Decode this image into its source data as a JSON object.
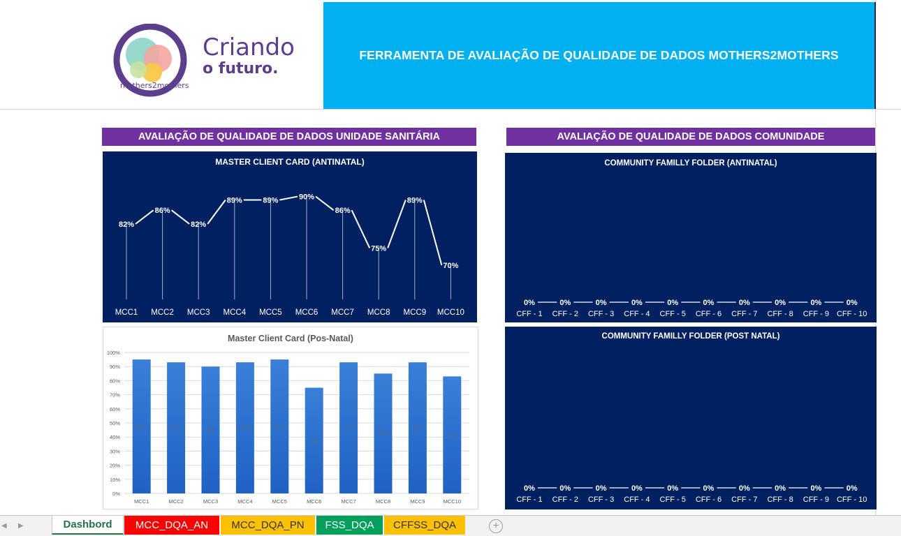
{
  "header": {
    "logo": {
      "line1": "Criando",
      "line2": "o futuro.",
      "arc_text": "mothers2mothers"
    },
    "banner_title": "FERRAMENTA DE AVALIAÇÃO DE QUALIDADE DE DADOS MOTHERS2MOTHERS"
  },
  "sections": {
    "left_title": "AVALIAÇÃO  DE QUALIDADE DE DADOS UNIDADE SANITÁRIA",
    "right_title": "AVALIAÇÃO  DE QUALIDADE DE DADOS COMUNIDADE"
  },
  "colors": {
    "banner": "#00b0f0",
    "section_header": "#7030a0",
    "panel_navy": "#002060",
    "bar_blue": "#2e75d2",
    "tab_red": "#ff0000",
    "tab_yellow": "#ffc000",
    "tab_green": "#00a05a"
  },
  "chart_data": [
    {
      "type": "line",
      "title": "MASTER CLIENT CARD (ANTINATAL)",
      "categories": [
        "MCC1",
        "MCC2",
        "MCC3",
        "MCC4",
        "MCC5",
        "MCC6",
        "MCC7",
        "MCC8",
        "MCC9",
        "MCC10"
      ],
      "values": [
        82,
        86,
        82,
        89,
        89,
        90,
        86,
        75,
        89,
        70
      ],
      "labels": [
        "82%",
        "86%",
        "82%",
        "89%",
        "89%",
        "90%",
        "86%",
        "75%",
        "89%",
        "70%"
      ],
      "drop_lines": true
    },
    {
      "type": "bar",
      "title": "Master Client Card (Pos-Natal)",
      "categories": [
        "MCC1",
        "MCC2",
        "MCC3",
        "MCC4",
        "MCC5",
        "MCC6",
        "MCC7",
        "MCC8",
        "MCC9",
        "MCC10"
      ],
      "values": [
        95,
        93,
        90,
        93,
        95,
        75,
        93,
        85,
        93,
        83
      ],
      "labels": [
        "95%",
        "93%",
        "90%",
        "93%",
        "95%",
        "75%",
        "93%",
        "85%",
        "93%",
        "83%"
      ],
      "yticks": [
        "0%",
        "10%",
        "20%",
        "30%",
        "40%",
        "50%",
        "60%",
        "70%",
        "80%",
        "90%",
        "100%"
      ],
      "ylim": [
        0,
        100
      ],
      "grid": true
    },
    {
      "type": "line",
      "title": "COMMUNITY FAMILLY FOLDER  (ANTINATAL)",
      "categories": [
        "CFF - 1",
        "CFF - 2",
        "CFF - 3",
        "CFF - 4",
        "CFF - 5",
        "CFF - 6",
        "CFF - 7",
        "CFF - 8",
        "CFF - 9",
        "CFF - 10"
      ],
      "values": [
        0,
        0,
        0,
        0,
        0,
        0,
        0,
        0,
        0,
        0
      ],
      "labels": [
        "0%",
        "0%",
        "0%",
        "0%",
        "0%",
        "0%",
        "0%",
        "0%",
        "0%",
        "0%"
      ]
    },
    {
      "type": "line",
      "title": "COMMUNITY FAMILLY FOLDER (POST NATAL)",
      "categories": [
        "CFF - 1",
        "CFF - 2",
        "CFF - 3",
        "CFF - 4",
        "CFF - 5",
        "CFF - 6",
        "CFF - 7",
        "CFF - 8",
        "CFF - 9",
        "CFF - 10"
      ],
      "values": [
        0,
        0,
        0,
        0,
        0,
        0,
        0,
        0,
        0,
        0
      ],
      "labels": [
        "0%",
        "0%",
        "0%",
        "0%",
        "0%",
        "0%",
        "0%",
        "0%",
        "0%",
        "0%"
      ]
    }
  ],
  "sheet_tabs": [
    {
      "label": "Dashbord",
      "active": true,
      "color": "#ffffff"
    },
    {
      "label": "MCC_DQA_AN",
      "active": false,
      "color": "#ff0000"
    },
    {
      "label": "MCC_DQA_PN",
      "active": false,
      "color": "#ffc000"
    },
    {
      "label": "FSS_DQA",
      "active": false,
      "color": "#00a05a"
    },
    {
      "label": "CFFSS_DQA",
      "active": false,
      "color": "#ffc000"
    }
  ],
  "add_sheet_symbol": "+"
}
